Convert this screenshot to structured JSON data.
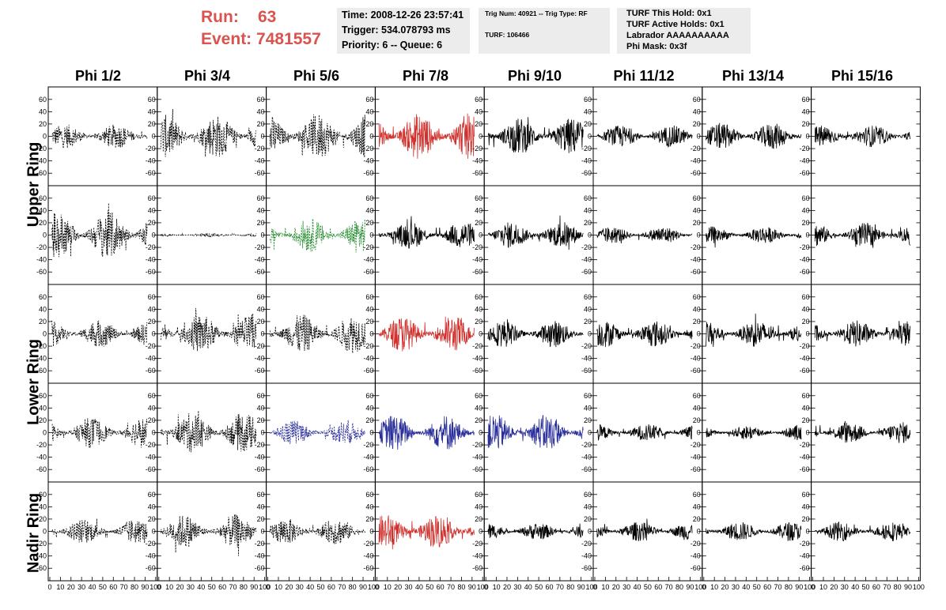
{
  "header": {
    "run_label": "Run:",
    "run_value": "63",
    "event_label": "Event:",
    "event_value": "7481557",
    "time": "Time: 2008-12-26 23:57:41",
    "trigger": "Trigger: 534.078793 ms",
    "priority": "Priority: 6 -- Queue: 6",
    "trig_num": "Trig Num: 40921 -- Trig Type: RF",
    "turf": "TURF: 106466",
    "turf_hold": "TURF This Hold: 0x1",
    "turf_active": "TURF Active Holds: 0x1",
    "labrador": "Labrador AAAAAAAAAA",
    "phi_mask": "Phi Mask: 0x3f"
  },
  "columns": [
    "Phi 1/2",
    "Phi 3/4",
    "Phi 5/6",
    "Phi 7/8",
    "Phi 9/10",
    "Phi 11/12",
    "Phi 13/14",
    "Phi 15/16"
  ],
  "rows": [
    "Upper Ring",
    "Upper Ring",
    "Lower Ring",
    "Lower Ring",
    "Nadir Ring"
  ],
  "row_labels": {
    "upper": "Upper Ring",
    "lower": "Lower Ring",
    "nadir": "Nadir Ring"
  },
  "chart_data": {
    "type": "line",
    "title": "",
    "xlabel": "",
    "ylabel": "",
    "xlim": [
      0,
      100
    ],
    "ylim": [
      -70,
      70
    ],
    "y_ticks": [
      -60,
      -40,
      -20,
      0,
      20,
      40,
      60
    ],
    "x_ticks": [
      0,
      10,
      20,
      30,
      40,
      50,
      60,
      70,
      80,
      90,
      100
    ],
    "x_tick_labels": [
      "0",
      "10",
      "20",
      "30",
      "40",
      "50",
      "60",
      "70",
      "80",
      "90",
      "100"
    ],
    "colors": {
      "black": "#000000",
      "red": "#d0312d",
      "green": "#1f8a2a",
      "blue": "#2a2f9a"
    },
    "panels": [
      [
        {
          "color": "black",
          "style": "dash",
          "amp": 20
        },
        {
          "color": "black",
          "style": "dash",
          "amp": 35
        },
        {
          "color": "black",
          "style": "dash",
          "amp": 38
        },
        {
          "color": "red",
          "style": "solid",
          "amp": 38
        },
        {
          "color": "black",
          "style": "solid",
          "amp": 30
        },
        {
          "color": "black",
          "style": "solid",
          "amp": 18
        },
        {
          "color": "black",
          "style": "solid",
          "amp": 22
        },
        {
          "color": "black",
          "style": "solid",
          "amp": 18
        }
      ],
      [
        {
          "color": "black",
          "style": "dash",
          "amp": 40
        },
        {
          "color": "black",
          "style": "dash",
          "amp": 3
        },
        {
          "color": "green",
          "style": "dash",
          "amp": 28
        },
        {
          "color": "black",
          "style": "solid",
          "amp": 22
        },
        {
          "color": "black",
          "style": "solid",
          "amp": 22
        },
        {
          "color": "black",
          "style": "solid",
          "amp": 14
        },
        {
          "color": "black",
          "style": "solid",
          "amp": 14
        },
        {
          "color": "black",
          "style": "solid",
          "amp": 20
        }
      ],
      [
        {
          "color": "black",
          "style": "dash",
          "amp": 22
        },
        {
          "color": "black",
          "style": "dash",
          "amp": 32
        },
        {
          "color": "black",
          "style": "dash",
          "amp": 32
        },
        {
          "color": "red",
          "style": "solid",
          "amp": 30
        },
        {
          "color": "black",
          "style": "solid",
          "amp": 22
        },
        {
          "color": "black",
          "style": "solid",
          "amp": 22
        },
        {
          "color": "black",
          "style": "solid",
          "amp": 22
        },
        {
          "color": "black",
          "style": "solid",
          "amp": 22
        }
      ],
      [
        {
          "color": "black",
          "style": "dash",
          "amp": 25
        },
        {
          "color": "black",
          "style": "dash",
          "amp": 33
        },
        {
          "color": "blue",
          "style": "dash",
          "amp": 20
        },
        {
          "color": "blue",
          "style": "solid",
          "amp": 30
        },
        {
          "color": "blue",
          "style": "solid",
          "amp": 30
        },
        {
          "color": "black",
          "style": "solid",
          "amp": 14
        },
        {
          "color": "black",
          "style": "solid",
          "amp": 12
        },
        {
          "color": "black",
          "style": "solid",
          "amp": 18
        }
      ],
      [
        {
          "color": "black",
          "style": "dash",
          "amp": 20
        },
        {
          "color": "black",
          "style": "dash",
          "amp": 28
        },
        {
          "color": "black",
          "style": "dash",
          "amp": 22
        },
        {
          "color": "red",
          "style": "solid",
          "amp": 28
        },
        {
          "color": "black",
          "style": "solid",
          "amp": 14
        },
        {
          "color": "black",
          "style": "solid",
          "amp": 16
        },
        {
          "color": "black",
          "style": "solid",
          "amp": 16
        },
        {
          "color": "black",
          "style": "solid",
          "amp": 16
        }
      ]
    ]
  }
}
